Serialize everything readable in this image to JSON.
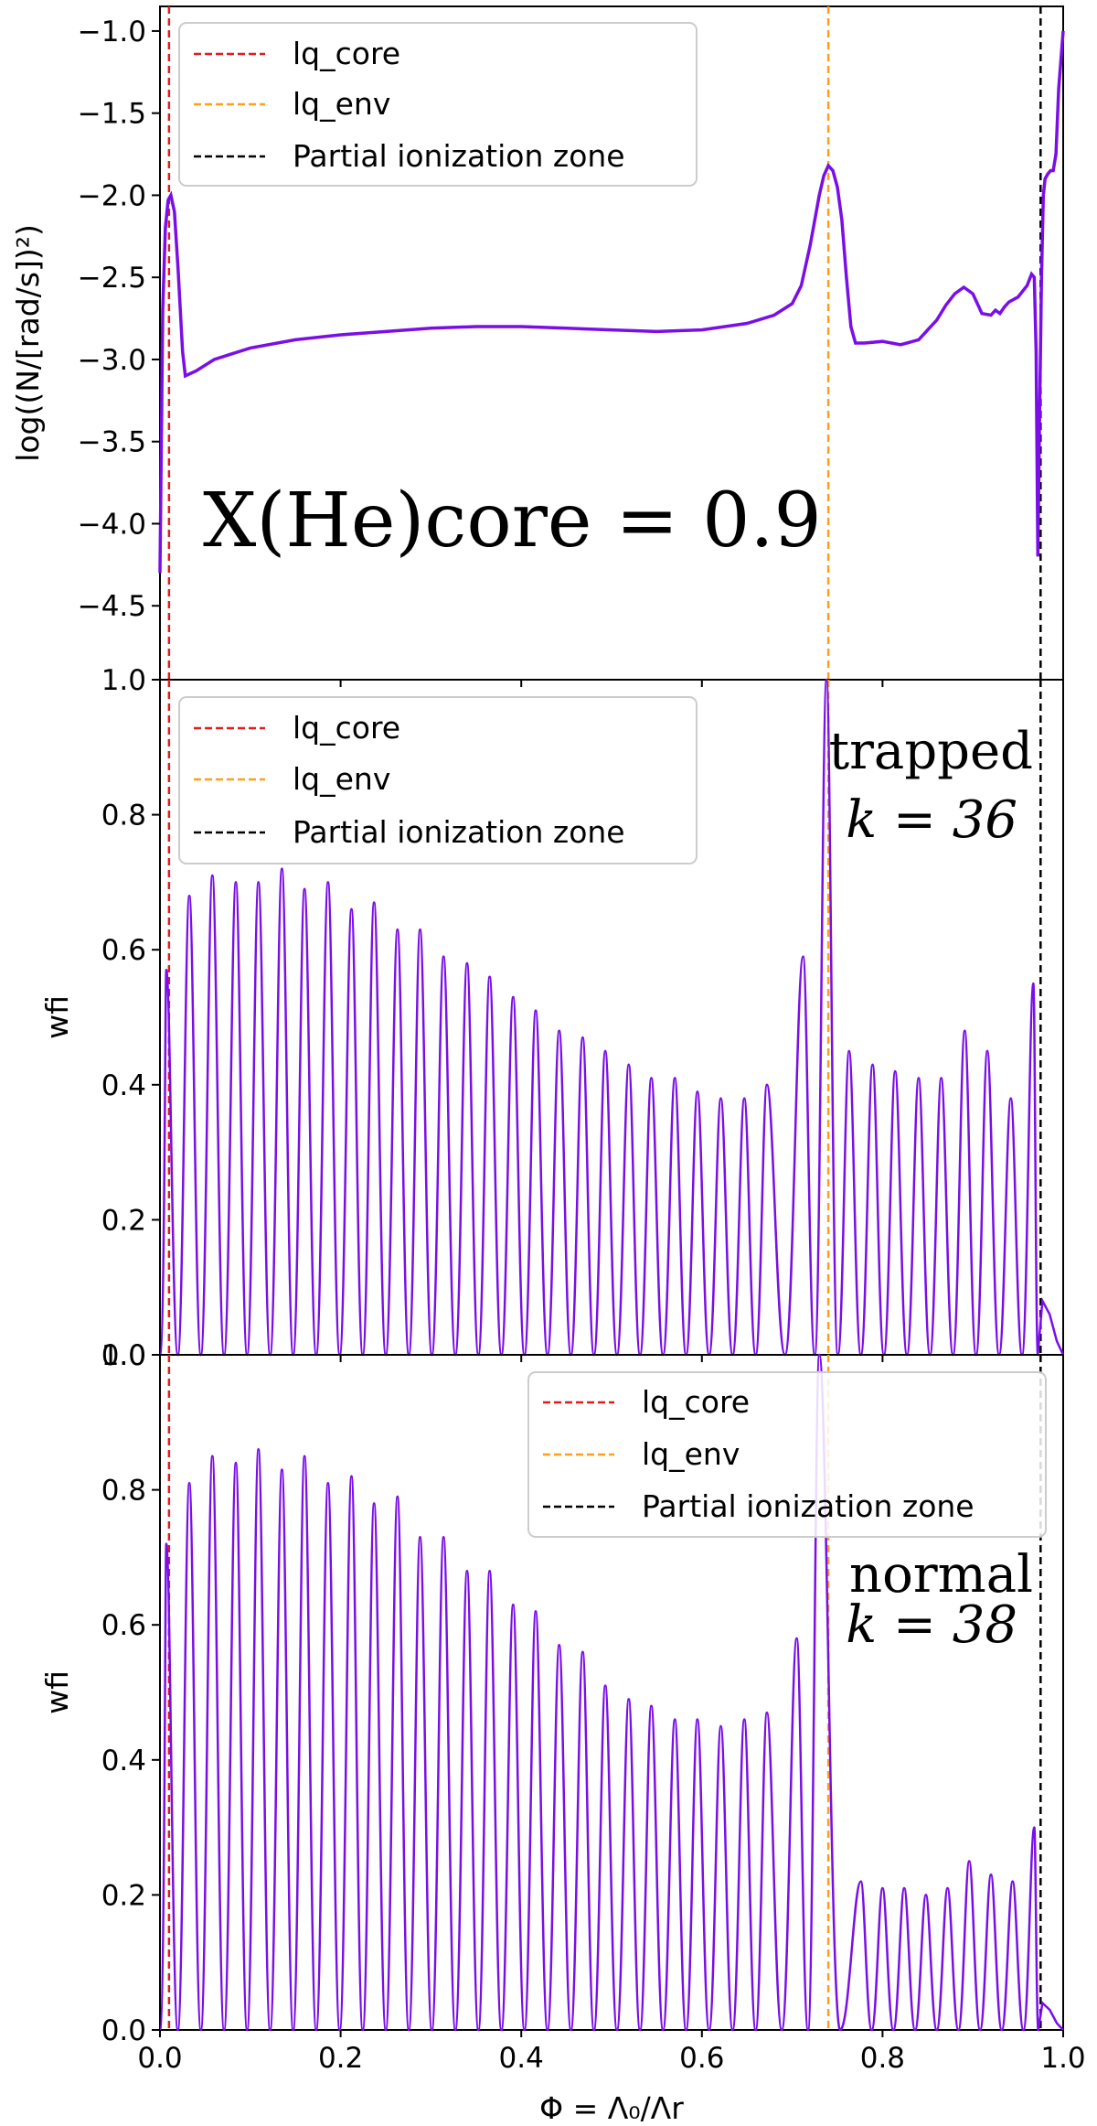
{
  "figure": {
    "xlabel": "Φ = Λ₀/Λr",
    "xticks": [
      "0.0",
      "0.2",
      "0.4",
      "0.6",
      "0.8",
      "1.0"
    ],
    "xlim": [
      0,
      1
    ]
  },
  "chart_data": [
    {
      "type": "line",
      "ylabel": "log((N/[rad/s])²)",
      "ylim": [
        -4.95,
        -0.85
      ],
      "yticks": [
        "−1.0",
        "−1.5",
        "−2.0",
        "−2.5",
        "−3.0",
        "−3.5",
        "−4.0",
        "−4.5"
      ],
      "annotation": "X(He)core = 0.9",
      "legend": {
        "placement": "top-left",
        "entries": [
          "lq_core",
          "lq_env",
          "Partial ionization zone"
        ]
      },
      "vlines": [
        {
          "name": "lq_core",
          "x": 0.01,
          "color": "#e41a1c"
        },
        {
          "name": "lq_env",
          "x": 0.74,
          "color": "#ff9f1c"
        },
        {
          "name": "Partial ionization zone",
          "x": 0.975,
          "color": "#000000"
        }
      ],
      "series_color": "#7a0ee8",
      "x": [
        0.0,
        0.003,
        0.006,
        0.009,
        0.012,
        0.016,
        0.02,
        0.025,
        0.028,
        0.04,
        0.06,
        0.1,
        0.15,
        0.2,
        0.25,
        0.3,
        0.35,
        0.4,
        0.45,
        0.5,
        0.55,
        0.6,
        0.65,
        0.68,
        0.7,
        0.71,
        0.72,
        0.73,
        0.735,
        0.74,
        0.745,
        0.75,
        0.755,
        0.76,
        0.765,
        0.77,
        0.78,
        0.8,
        0.82,
        0.84,
        0.86,
        0.87,
        0.88,
        0.89,
        0.9,
        0.91,
        0.92,
        0.925,
        0.93,
        0.935,
        0.94,
        0.95,
        0.96,
        0.965,
        0.968,
        0.97,
        0.972,
        0.974,
        0.976,
        0.978,
        0.98,
        0.983,
        0.986,
        0.989,
        0.992,
        0.995,
        1.0
      ],
      "y": [
        -4.3,
        -2.7,
        -2.2,
        -2.03,
        -2.0,
        -2.1,
        -2.45,
        -2.95,
        -3.1,
        -3.07,
        -3.0,
        -2.93,
        -2.88,
        -2.85,
        -2.83,
        -2.81,
        -2.8,
        -2.8,
        -2.81,
        -2.82,
        -2.83,
        -2.82,
        -2.78,
        -2.73,
        -2.66,
        -2.55,
        -2.3,
        -2.0,
        -1.88,
        -1.82,
        -1.85,
        -1.95,
        -2.15,
        -2.5,
        -2.8,
        -2.9,
        -2.9,
        -2.89,
        -2.91,
        -2.88,
        -2.76,
        -2.67,
        -2.6,
        -2.56,
        -2.6,
        -2.72,
        -2.73,
        -2.7,
        -2.72,
        -2.68,
        -2.65,
        -2.62,
        -2.55,
        -2.48,
        -2.5,
        -2.95,
        -4.2,
        -3.3,
        -2.5,
        -2.0,
        -1.9,
        -1.87,
        -1.85,
        -1.85,
        -1.75,
        -1.35,
        -1.0
      ]
    },
    {
      "type": "line",
      "ylabel": "wfi",
      "ylim": [
        0,
        1.0
      ],
      "yticks": [
        "0.0",
        "0.2",
        "0.4",
        "0.6",
        "0.8",
        "1.0"
      ],
      "annotation_line1": "trapped",
      "annotation_line2": "k = 36",
      "legend": {
        "placement": "top-left",
        "entries": [
          "lq_core",
          "lq_env",
          "Partial ionization zone"
        ]
      },
      "vlines": [
        {
          "name": "lq_core",
          "x": 0.01,
          "color": "#e41a1c"
        },
        {
          "name": "lq_env",
          "x": 0.74,
          "color": "#ff9f1c"
        },
        {
          "name": "Partial ionization zone",
          "x": 0.975,
          "color": "#000000"
        }
      ],
      "series_color": "#7a0ee8",
      "peaks_x": [
        0.007,
        0.0325,
        0.058,
        0.084,
        0.109,
        0.135,
        0.16,
        0.186,
        0.212,
        0.237,
        0.263,
        0.288,
        0.314,
        0.34,
        0.365,
        0.391,
        0.416,
        0.442,
        0.468,
        0.493,
        0.519,
        0.544,
        0.57,
        0.595,
        0.621,
        0.647,
        0.672,
        0.712,
        0.738,
        0.763,
        0.789,
        0.814,
        0.84,
        0.865,
        0.891,
        0.916,
        0.942,
        0.967
      ],
      "peaks_y": [
        0.57,
        0.68,
        0.71,
        0.7,
        0.7,
        0.72,
        0.69,
        0.7,
        0.66,
        0.67,
        0.63,
        0.63,
        0.59,
        0.58,
        0.56,
        0.53,
        0.51,
        0.48,
        0.47,
        0.45,
        0.43,
        0.41,
        0.41,
        0.39,
        0.38,
        0.38,
        0.4,
        0.59,
        1.0,
        0.45,
        0.43,
        0.42,
        0.41,
        0.41,
        0.48,
        0.45,
        0.38,
        0.55
      ],
      "tail_x": [
        0.977,
        0.985,
        0.993,
        1.0
      ],
      "tail_y": [
        0.08,
        0.06,
        0.02,
        0.0
      ]
    },
    {
      "type": "line",
      "ylabel": "wfi",
      "ylim": [
        0,
        1.0
      ],
      "yticks": [
        "0.0",
        "0.2",
        "0.4",
        "0.6",
        "0.8",
        "1.0"
      ],
      "annotation_line1": "normal",
      "annotation_line2": "k = 38",
      "legend": {
        "placement": "top-right",
        "entries": [
          "lq_core",
          "lq_env",
          "Partial ionization zone"
        ]
      },
      "vlines": [
        {
          "name": "lq_core",
          "x": 0.01,
          "color": "#e41a1c"
        },
        {
          "name": "lq_env",
          "x": 0.74,
          "color": "#ff9f1c"
        },
        {
          "name": "Partial ionization zone",
          "x": 0.975,
          "color": "#000000"
        }
      ],
      "series_color": "#7a0ee8",
      "peaks_x": [
        0.007,
        0.0325,
        0.058,
        0.084,
        0.109,
        0.135,
        0.16,
        0.186,
        0.212,
        0.237,
        0.263,
        0.288,
        0.314,
        0.34,
        0.365,
        0.391,
        0.416,
        0.442,
        0.468,
        0.493,
        0.519,
        0.544,
        0.57,
        0.595,
        0.621,
        0.647,
        0.672,
        0.705,
        0.73,
        0.776,
        0.8,
        0.824,
        0.848,
        0.872,
        0.896,
        0.92,
        0.944,
        0.968
      ],
      "peaks_y": [
        0.72,
        0.81,
        0.85,
        0.84,
        0.86,
        0.83,
        0.85,
        0.81,
        0.82,
        0.78,
        0.79,
        0.73,
        0.73,
        0.68,
        0.68,
        0.63,
        0.62,
        0.57,
        0.56,
        0.51,
        0.49,
        0.48,
        0.46,
        0.46,
        0.45,
        0.46,
        0.47,
        0.58,
        1.0,
        0.22,
        0.21,
        0.21,
        0.2,
        0.21,
        0.25,
        0.23,
        0.22,
        0.3
      ],
      "tail_x": [
        0.977,
        0.985,
        0.993,
        1.0
      ],
      "tail_y": [
        0.04,
        0.03,
        0.01,
        0.0
      ]
    }
  ]
}
